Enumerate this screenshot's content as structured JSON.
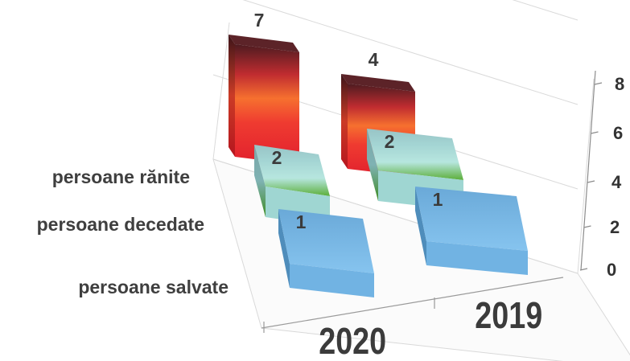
{
  "chart_data": {
    "type": "bar",
    "categories": [
      "2020",
      "2019"
    ],
    "series": [
      {
        "name": "persoane rănite",
        "values": [
          7,
          4
        ]
      },
      {
        "name": "persoane decedate",
        "values": [
          2,
          2
        ]
      },
      {
        "name": "persoane salvate",
        "values": [
          1,
          1
        ]
      }
    ],
    "ylim": [
      0,
      8
    ],
    "yticks": [
      0,
      2,
      4,
      6,
      8
    ],
    "grid": true,
    "data_labels": true,
    "colors": {
      "persoane rănite": [
        "#d81c2c",
        "#f0552f",
        "#5a2226"
      ],
      "persoane decedate": [
        "#62b03f",
        "#b3e5e3",
        "#8cb9bb"
      ],
      "persoane salvate": [
        "#6aaedd",
        "#9ed0f1",
        "#4f8eb8"
      ]
    }
  }
}
